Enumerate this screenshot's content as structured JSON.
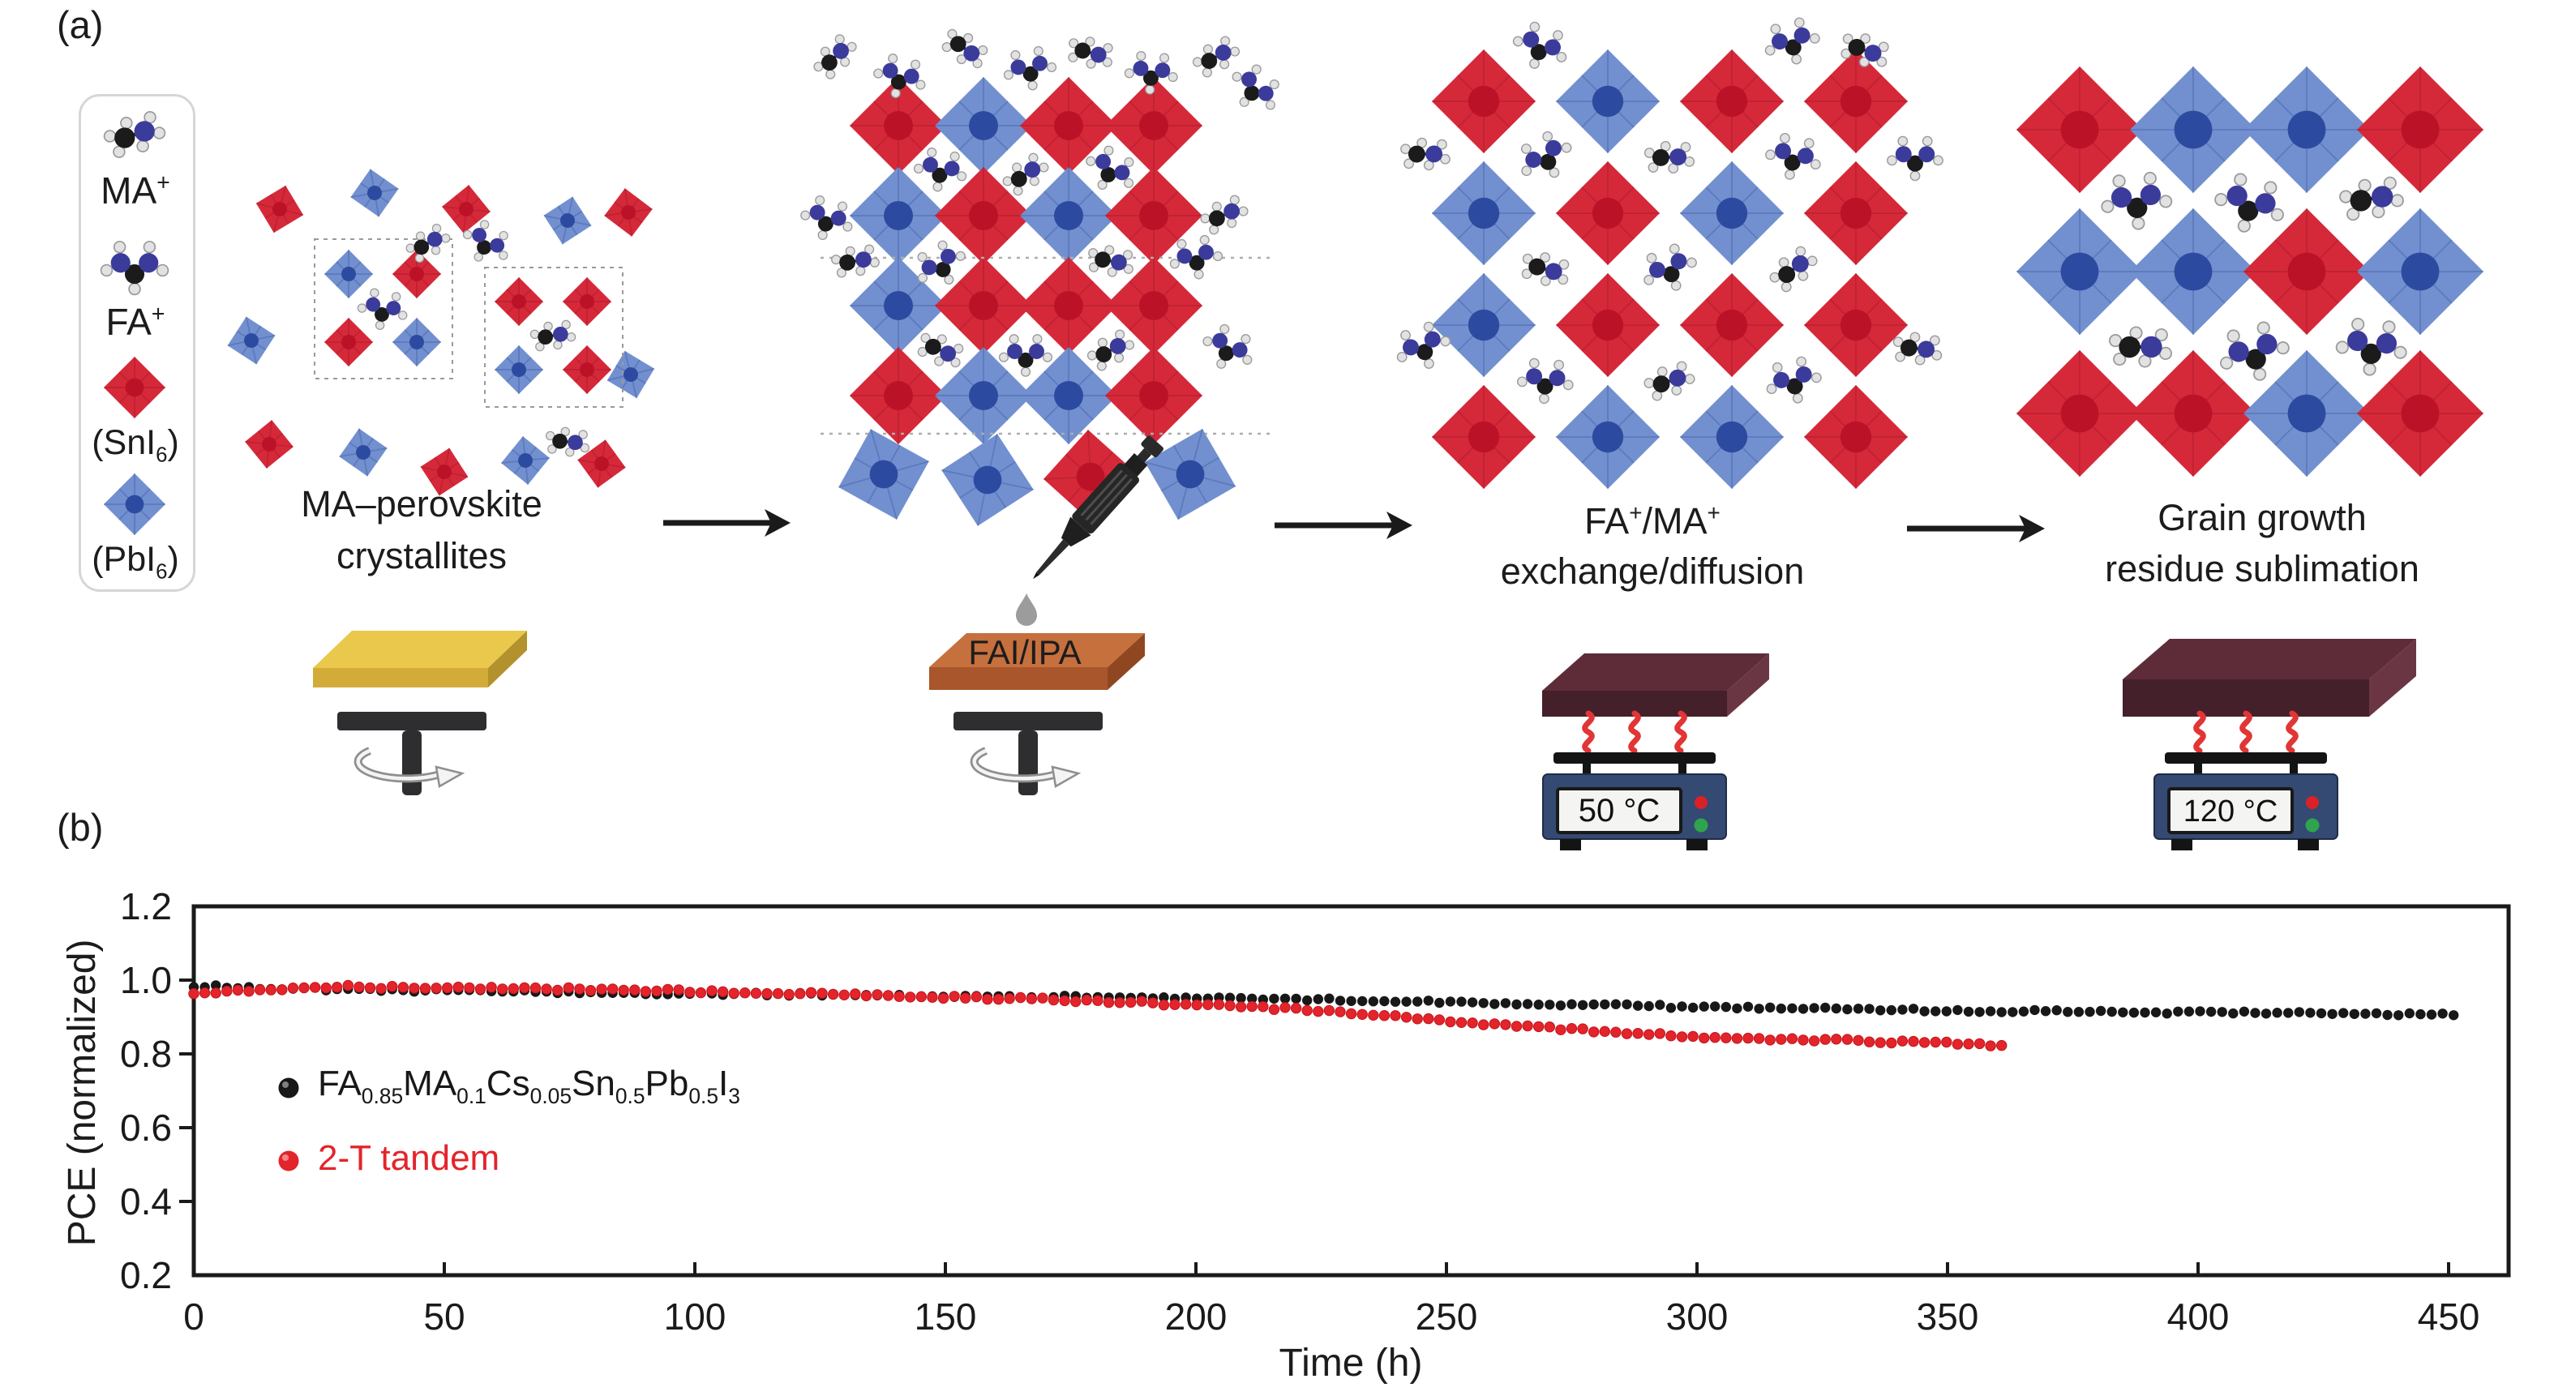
{
  "figure": {
    "panel_a_label": "(a)",
    "panel_b_label": "(b)"
  },
  "molecule_legend": {
    "items": [
      {
        "name": "MA cation",
        "label": "MA",
        "sup": "+"
      },
      {
        "name": "FA cation",
        "label": "FA",
        "sup": "+"
      },
      {
        "name": "SnI6 octahedron",
        "pre": "(SnI",
        "sub": "6",
        "post": ")"
      },
      {
        "name": "PbI6 octahedron",
        "pre": "(PbI",
        "sub": "6",
        "post": ")"
      }
    ]
  },
  "stages": [
    {
      "label_line1": "MA–perovskite",
      "label_line2": "crystallites"
    },
    {
      "slab_label": "FAI/IPA"
    },
    {
      "label_rich": [
        {
          "t": "FA"
        },
        {
          "sup": "+"
        },
        {
          "t": "/MA"
        },
        {
          "sup": "+"
        }
      ],
      "label_line2": "exchange/diffusion",
      "hotplate_temp": "50 °C"
    },
    {
      "label_line1": "Grain growth",
      "label_line2": "residue sublimation",
      "hotplate_temp": "120 °C"
    }
  ],
  "colors": {
    "red_octahedron": "#d5293a",
    "red_octahedron_core": "#bc1228",
    "blue_octahedron": "#7290cf",
    "blue_octahedron_core": "#2c4ba0",
    "nitrogen_blue": "#3b3b9c",
    "carbon_black": "#1b1b1b",
    "hydrogen_gray": "#e2e2e2",
    "substrate_yellow": "#e9c84b",
    "substrate_fai_orange": "#c6703d",
    "film_maroon": "#5e2c39",
    "hotplate_navy": "#344a72",
    "heat_red": "#e23535",
    "series_black": "#181818",
    "series_red": "#e3242b"
  },
  "chart_data": {
    "type": "scatter",
    "title": "",
    "xlabel": "Time (h)",
    "ylabel": "PCE (normalized)",
    "xlim": [
      0,
      462
    ],
    "ylim": [
      0.2,
      1.2
    ],
    "x_ticks": [
      0,
      50,
      100,
      150,
      200,
      250,
      300,
      350,
      400,
      450
    ],
    "y_ticks": [
      1.2,
      1.0,
      0.8,
      0.6,
      0.4,
      0.2
    ],
    "grid": false,
    "legend_position": "inside-left",
    "series": [
      {
        "name": "FA0.85MA0.1Cs0.05Sn0.5Pb0.5I3",
        "formula_parts": [
          [
            "FA",
            "0.85"
          ],
          [
            "MA",
            "0.1"
          ],
          [
            "Cs",
            "0.05"
          ],
          [
            "Sn",
            "0.5"
          ],
          [
            "Pb",
            "0.5"
          ],
          [
            "I",
            "3"
          ]
        ],
        "color": "#181818",
        "marker": "circle",
        "points": [
          [
            0,
            0.985
          ],
          [
            15,
            0.979
          ],
          [
            40,
            0.973
          ],
          [
            80,
            0.967
          ],
          [
            120,
            0.961
          ],
          [
            160,
            0.956
          ],
          [
            200,
            0.951
          ],
          [
            240,
            0.945
          ],
          [
            280,
            0.932
          ],
          [
            320,
            0.923
          ],
          [
            360,
            0.916
          ],
          [
            400,
            0.912
          ],
          [
            453,
            0.907
          ]
        ]
      },
      {
        "name": "2-T tandem",
        "color": "#e3242b",
        "marker": "circle",
        "points": [
          [
            0,
            0.961
          ],
          [
            10,
            0.972
          ],
          [
            30,
            0.982
          ],
          [
            60,
            0.979
          ],
          [
            100,
            0.97
          ],
          [
            140,
            0.958
          ],
          [
            180,
            0.944
          ],
          [
            220,
            0.922
          ],
          [
            260,
            0.88
          ],
          [
            300,
            0.845
          ],
          [
            330,
            0.836
          ],
          [
            362,
            0.824
          ]
        ]
      }
    ]
  }
}
